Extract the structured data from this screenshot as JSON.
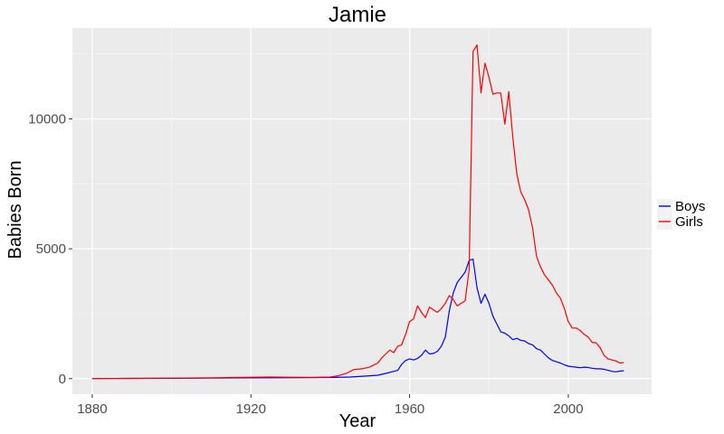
{
  "chart_data": {
    "type": "line",
    "title": "Jamie",
    "xlabel": "Year",
    "ylabel": "Babies Born",
    "xlim": [
      1875,
      2021
    ],
    "ylim": [
      -600,
      13500
    ],
    "x_ticks": [
      1880,
      1920,
      1960,
      2000
    ],
    "y_ticks": [
      0,
      5000,
      10000
    ],
    "x_tick_labels": [
      "1880",
      "1920",
      "1960",
      "2000"
    ],
    "y_tick_labels": [
      "0",
      "5000",
      "10000"
    ],
    "grid": true,
    "legend_position": "right",
    "colors": {
      "panel": "#ebebeb",
      "grid_major": "#ffffff",
      "grid_minor": "#f5f5f5",
      "boys": "#0000ff",
      "girls": "#ff0000"
    },
    "series": [
      {
        "name": "Boys",
        "color": "#0000ff",
        "points": [
          [
            1880,
            5
          ],
          [
            1890,
            8
          ],
          [
            1900,
            12
          ],
          [
            1910,
            18
          ],
          [
            1920,
            30
          ],
          [
            1930,
            35
          ],
          [
            1940,
            45
          ],
          [
            1945,
            60
          ],
          [
            1950,
            110
          ],
          [
            1952,
            130
          ],
          [
            1954,
            200
          ],
          [
            1956,
            280
          ],
          [
            1957,
            320
          ],
          [
            1958,
            550
          ],
          [
            1959,
            700
          ],
          [
            1960,
            760
          ],
          [
            1961,
            720
          ],
          [
            1962,
            780
          ],
          [
            1963,
            900
          ],
          [
            1964,
            1100
          ],
          [
            1965,
            950
          ],
          [
            1966,
            970
          ],
          [
            1967,
            1050
          ],
          [
            1968,
            1250
          ],
          [
            1969,
            1600
          ],
          [
            1970,
            2600
          ],
          [
            1971,
            3300
          ],
          [
            1972,
            3700
          ],
          [
            1973,
            3900
          ],
          [
            1974,
            4100
          ],
          [
            1975,
            4550
          ],
          [
            1976,
            4600
          ],
          [
            1977,
            3500
          ],
          [
            1978,
            2900
          ],
          [
            1979,
            3250
          ],
          [
            1980,
            2900
          ],
          [
            1981,
            2400
          ],
          [
            1982,
            2100
          ],
          [
            1983,
            1800
          ],
          [
            1984,
            1750
          ],
          [
            1985,
            1650
          ],
          [
            1986,
            1500
          ],
          [
            1987,
            1550
          ],
          [
            1988,
            1480
          ],
          [
            1989,
            1450
          ],
          [
            1990,
            1350
          ],
          [
            1991,
            1300
          ],
          [
            1992,
            1150
          ],
          [
            1993,
            1100
          ],
          [
            1994,
            950
          ],
          [
            1995,
            800
          ],
          [
            1996,
            700
          ],
          [
            1997,
            650
          ],
          [
            1998,
            600
          ],
          [
            1999,
            530
          ],
          [
            2000,
            480
          ],
          [
            2001,
            460
          ],
          [
            2002,
            440
          ],
          [
            2003,
            420
          ],
          [
            2004,
            440
          ],
          [
            2005,
            430
          ],
          [
            2006,
            400
          ],
          [
            2007,
            380
          ],
          [
            2008,
            380
          ],
          [
            2009,
            360
          ],
          [
            2010,
            320
          ],
          [
            2011,
            280
          ],
          [
            2012,
            260
          ],
          [
            2013,
            290
          ],
          [
            2014,
            300
          ]
        ]
      },
      {
        "name": "Girls",
        "color": "#ff0000",
        "points": [
          [
            1880,
            5
          ],
          [
            1890,
            10
          ],
          [
            1900,
            20
          ],
          [
            1910,
            30
          ],
          [
            1915,
            45
          ],
          [
            1920,
            55
          ],
          [
            1925,
            60
          ],
          [
            1930,
            55
          ],
          [
            1935,
            50
          ],
          [
            1940,
            60
          ],
          [
            1942,
            110
          ],
          [
            1944,
            200
          ],
          [
            1946,
            350
          ],
          [
            1948,
            380
          ],
          [
            1950,
            450
          ],
          [
            1952,
            600
          ],
          [
            1953,
            800
          ],
          [
            1954,
            950
          ],
          [
            1955,
            1100
          ],
          [
            1956,
            1000
          ],
          [
            1957,
            1250
          ],
          [
            1958,
            1300
          ],
          [
            1959,
            1700
          ],
          [
            1960,
            2200
          ],
          [
            1961,
            2300
          ],
          [
            1962,
            2800
          ],
          [
            1963,
            2550
          ],
          [
            1964,
            2350
          ],
          [
            1965,
            2750
          ],
          [
            1966,
            2650
          ],
          [
            1967,
            2550
          ],
          [
            1968,
            2700
          ],
          [
            1969,
            2900
          ],
          [
            1970,
            3200
          ],
          [
            1971,
            3050
          ],
          [
            1972,
            2800
          ],
          [
            1973,
            2900
          ],
          [
            1974,
            3000
          ],
          [
            1975,
            4200
          ],
          [
            1976,
            12600
          ],
          [
            1977,
            12850
          ],
          [
            1978,
            11000
          ],
          [
            1979,
            12150
          ],
          [
            1980,
            11600
          ],
          [
            1981,
            10950
          ],
          [
            1982,
            11000
          ],
          [
            1983,
            11000
          ],
          [
            1984,
            9800
          ],
          [
            1985,
            11050
          ],
          [
            1986,
            9300
          ],
          [
            1987,
            7900
          ],
          [
            1988,
            7200
          ],
          [
            1989,
            6900
          ],
          [
            1990,
            6500
          ],
          [
            1991,
            5800
          ],
          [
            1992,
            4700
          ],
          [
            1993,
            4300
          ],
          [
            1994,
            4000
          ],
          [
            1995,
            3800
          ],
          [
            1996,
            3600
          ],
          [
            1997,
            3300
          ],
          [
            1998,
            3100
          ],
          [
            1999,
            2700
          ],
          [
            2000,
            2200
          ],
          [
            2001,
            1950
          ],
          [
            2002,
            1950
          ],
          [
            2003,
            1850
          ],
          [
            2004,
            1700
          ],
          [
            2005,
            1600
          ],
          [
            2006,
            1400
          ],
          [
            2007,
            1380
          ],
          [
            2008,
            1200
          ],
          [
            2009,
            900
          ],
          [
            2010,
            760
          ],
          [
            2011,
            720
          ],
          [
            2012,
            680
          ],
          [
            2013,
            600
          ],
          [
            2014,
            620
          ]
        ]
      }
    ]
  }
}
